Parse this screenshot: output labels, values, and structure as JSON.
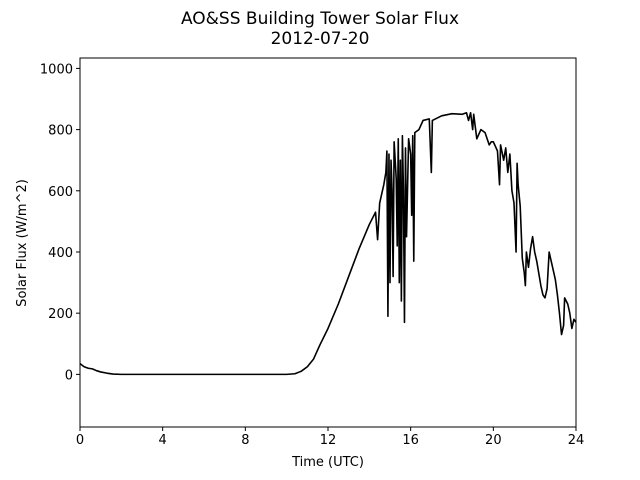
{
  "chart_data": {
    "type": "line",
    "title": "AO&SS Building Tower Solar Flux",
    "subtitle": "2012-07-20",
    "x_label": "Time (UTC)",
    "y_label": "Solar Flux (W/m^2)",
    "color": "#000000",
    "grid": false,
    "xlim": [
      0,
      24
    ],
    "xticks": [
      0,
      4,
      8,
      12,
      16,
      20,
      24
    ],
    "ylim": [
      -172,
      1034
    ],
    "yticks": [
      0,
      200,
      400,
      600,
      800,
      1000
    ],
    "x": [
      0,
      0.2,
      0.4,
      0.6,
      0.8,
      1,
      1.3,
      1.6,
      2,
      4,
      6,
      8,
      10,
      10.4,
      10.7,
      11,
      11.3,
      11.6,
      12,
      12.5,
      13,
      13.5,
      14,
      14.3,
      14.4,
      14.5,
      14.7,
      14.8,
      14.85,
      14.9,
      14.95,
      15.0,
      15.05,
      15.1,
      15.15,
      15.2,
      15.3,
      15.35,
      15.4,
      15.45,
      15.5,
      15.55,
      15.6,
      15.65,
      15.7,
      15.75,
      15.8,
      15.9,
      16.0,
      16.05,
      16.1,
      16.15,
      16.2,
      16.4,
      16.6,
      16.9,
      17.0,
      17.05,
      17.5,
      18,
      18.5,
      18.7,
      18.8,
      18.9,
      19.0,
      19.05,
      19.2,
      19.4,
      19.6,
      19.8,
      19.9,
      20,
      20.2,
      20.3,
      20.35,
      20.5,
      20.6,
      20.7,
      20.8,
      20.9,
      21.0,
      21.1,
      21.15,
      21.2,
      21.3,
      21.4,
      21.5,
      21.55,
      21.6,
      21.7,
      21.8,
      21.9,
      22.0,
      22.1,
      22.2,
      22.3,
      22.4,
      22.5,
      22.6,
      22.7,
      22.8,
      22.9,
      23.0,
      23.1,
      23.2,
      23.3,
      23.4,
      23.45,
      23.6,
      23.7,
      23.8,
      23.9,
      24
    ],
    "values": [
      35,
      25,
      20,
      18,
      12,
      8,
      4,
      1,
      0,
      0,
      0,
      0,
      0,
      2,
      10,
      25,
      50,
      95,
      150,
      230,
      320,
      410,
      490,
      530,
      440,
      560,
      620,
      660,
      730,
      190,
      720,
      300,
      700,
      600,
      320,
      760,
      640,
      420,
      770,
      300,
      700,
      240,
      780,
      600,
      170,
      740,
      450,
      770,
      720,
      520,
      780,
      370,
      790,
      800,
      830,
      835,
      660,
      830,
      845,
      852,
      850,
      855,
      830,
      855,
      800,
      850,
      770,
      800,
      790,
      750,
      760,
      760,
      730,
      620,
      750,
      700,
      740,
      660,
      720,
      600,
      560,
      400,
      690,
      620,
      550,
      380,
      330,
      290,
      400,
      350,
      410,
      450,
      400,
      370,
      330,
      290,
      260,
      250,
      280,
      400,
      370,
      340,
      310,
      260,
      200,
      130,
      160,
      250,
      230,
      200,
      150,
      180,
      170
    ]
  }
}
